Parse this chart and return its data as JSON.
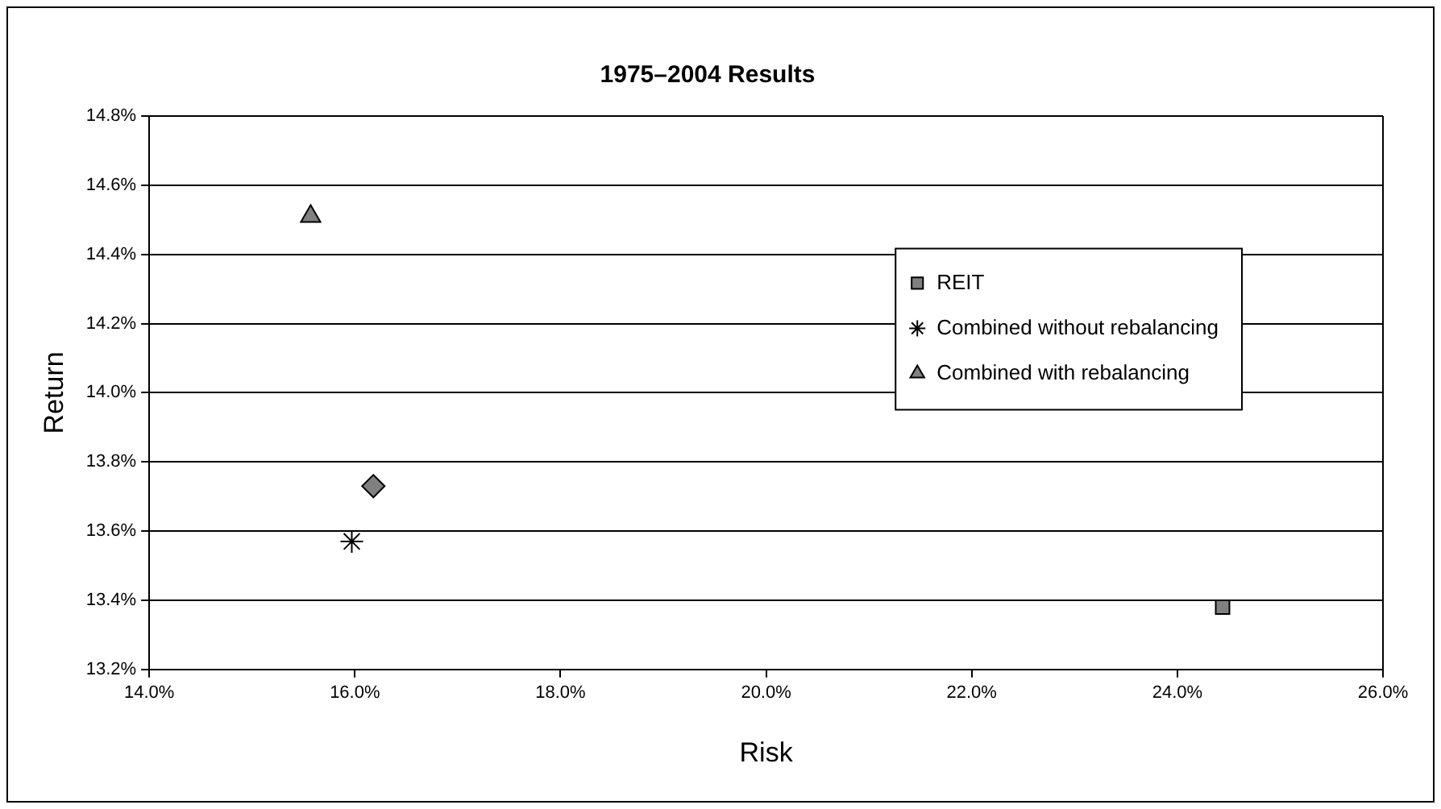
{
  "chart_data": {
    "type": "scatter",
    "title": "1975–2004 Results",
    "xlabel": "Risk",
    "ylabel": "Return",
    "xlim": [
      14,
      26
    ],
    "xticks": [
      {
        "value": 14,
        "label": "14.0%"
      },
      {
        "value": 16,
        "label": "16.0%"
      },
      {
        "value": 18,
        "label": "18.0%"
      },
      {
        "value": 20,
        "label": "20.0%"
      },
      {
        "value": 22,
        "label": "22.0%"
      },
      {
        "value": 24,
        "label": "24.0%"
      },
      {
        "value": 26,
        "label": "26.0%"
      }
    ],
    "ylim": [
      13.2,
      14.8
    ],
    "yticks": [
      {
        "value": 13.2,
        "label": "13.2%"
      },
      {
        "value": 13.4,
        "label": "13.4%"
      },
      {
        "value": 13.6,
        "label": "13.6%"
      },
      {
        "value": 13.8,
        "label": "13.8%"
      },
      {
        "value": 14.0,
        "label": "14.0%"
      },
      {
        "value": 14.2,
        "label": "14.2%"
      },
      {
        "value": 14.4,
        "label": "14.4%"
      },
      {
        "value": 14.6,
        "label": "14.6%"
      },
      {
        "value": 14.8,
        "label": "14.8%"
      }
    ],
    "grid": "y",
    "legend": "right",
    "series": [
      {
        "color": "#808080",
        "marker": "diamond",
        "x": [
          16.18
        ],
        "values": [
          13.73
        ]
      },
      {
        "name": "REIT",
        "color": "#808080",
        "marker": "square",
        "x": [
          24.44
        ],
        "values": [
          13.38
        ]
      },
      {
        "name": "Combined without rebalancing",
        "color": "#000000",
        "marker": "cross",
        "x": [
          15.97
        ],
        "values": [
          13.57
        ]
      },
      {
        "name": "Combined with rebalancing",
        "color": "#808080",
        "marker": "triangle",
        "x": [
          15.57
        ],
        "values": [
          14.51
        ]
      }
    ]
  }
}
